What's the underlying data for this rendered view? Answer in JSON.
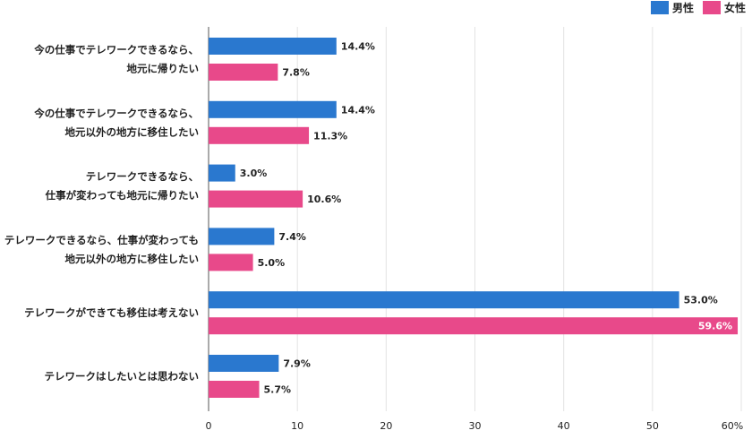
{
  "chart_data": {
    "type": "bar",
    "orientation": "horizontal",
    "categories": [
      [
        "今の仕事でテレワークできるなら、",
        "地元に帰りたい"
      ],
      [
        "今の仕事でテレワークできるなら、",
        "地元以外の地方に移住したい"
      ],
      [
        "テレワークできるなら、",
        "仕事が変わっても地元に帰りたい"
      ],
      [
        "テレワークできるなら、仕事が変わっても",
        "地元以外の地方に移住したい"
      ],
      [
        "テレワークができても移住は考えない"
      ],
      [
        "テレワークはしたいとは思わない"
      ]
    ],
    "series": [
      {
        "name": "男性",
        "color": "#2a78cf",
        "values": [
          14.4,
          14.4,
          3.0,
          7.4,
          53.0,
          7.9
        ]
      },
      {
        "name": "女性",
        "color": "#e8498a",
        "values": [
          7.8,
          11.3,
          10.6,
          5.0,
          59.6,
          5.7
        ]
      }
    ],
    "xlim": [
      0,
      60
    ],
    "xticks": [
      0,
      10,
      20,
      30,
      40,
      50,
      60
    ],
    "xtick_labels": [
      "0",
      "10",
      "20",
      "30",
      "40",
      "50",
      "60%"
    ],
    "value_suffix": "%",
    "grid": true,
    "legend": "top-right"
  }
}
